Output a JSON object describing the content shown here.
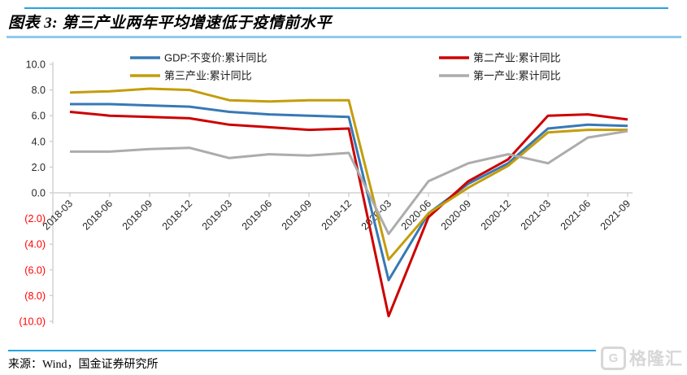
{
  "header": {
    "title": "图表 3: 第三产业两年平均增速低于疫情前水平"
  },
  "footer": {
    "source": "来源：Wind，国金证券研究所"
  },
  "watermark": {
    "logo_letter": "G",
    "text": "格隆汇"
  },
  "colors": {
    "border_blue": "#25A3DE",
    "title_underline_blue": "#8FCBEC",
    "axis_line_gray": "#C9C9C9",
    "zero_line_gray": "#D8D8D8",
    "tick_label_dark": "#262626",
    "negative_label_red": "#FF0000",
    "watermark_gray": "#D7D7D7"
  },
  "chart_data": {
    "type": "line",
    "title": "图表 3: 第三产业两年平均增速低于疫情前水平",
    "xlabel": "",
    "ylabel": "",
    "ylim": [
      -10.0,
      10.0
    ],
    "ytick_step": 2.0,
    "ytick_labels": [
      "10.0",
      "8.0",
      "6.0",
      "4.0",
      "2.0",
      "0.0",
      "(2.0)",
      "(4.0)",
      "(6.0)",
      "(8.0)",
      "(10.0)"
    ],
    "negative_ticks_in_red_parentheses": true,
    "gridlines": "zero-line-only",
    "legend_position": "top-two-columns",
    "categories": [
      "2018-03",
      "2018-06",
      "2018-09",
      "2018-12",
      "2019-03",
      "2019-06",
      "2019-09",
      "2019-12",
      "2020-03",
      "2020-06",
      "2020-09",
      "2020-12",
      "2021-03",
      "2021-06",
      "2021-09"
    ],
    "series": [
      {
        "name": "GDP:不变价:累计同比",
        "color": "#3779B5",
        "values": [
          6.9,
          6.9,
          6.8,
          6.7,
          6.3,
          6.1,
          6.0,
          5.9,
          -6.8,
          -1.6,
          0.7,
          2.3,
          5.0,
          5.3,
          5.2
        ]
      },
      {
        "name": "第二产业:累计同比",
        "color": "#CC0000",
        "values": [
          6.3,
          6.0,
          5.9,
          5.8,
          5.3,
          5.1,
          4.9,
          5.0,
          -9.6,
          -1.9,
          0.9,
          2.6,
          6.0,
          6.1,
          5.7
        ]
      },
      {
        "name": "第三产业:累计同比",
        "color": "#C49D0B",
        "values": [
          7.8,
          7.9,
          8.1,
          8.0,
          7.2,
          7.1,
          7.2,
          7.2,
          -5.2,
          -1.6,
          0.4,
          2.1,
          4.7,
          4.9,
          4.9
        ]
      },
      {
        "name": "第一产业:累计同比",
        "color": "#ACACAC",
        "values": [
          3.2,
          3.2,
          3.4,
          3.5,
          2.7,
          3.0,
          2.9,
          3.1,
          -3.2,
          0.9,
          2.3,
          3.0,
          2.3,
          4.3,
          4.8
        ]
      }
    ]
  }
}
